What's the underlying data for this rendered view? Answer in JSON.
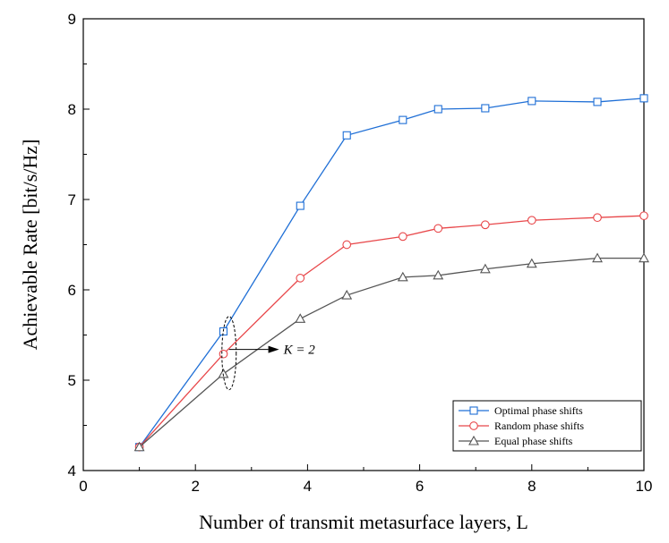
{
  "chart_data": {
    "type": "line",
    "title": "",
    "xlabel": "Number of transmit metasurface layers, L",
    "ylabel": "Achievable Rate [bit/s/Hz]",
    "xlim": [
      0,
      10
    ],
    "ylim": [
      4,
      9
    ],
    "xticks": [
      "0",
      "2",
      "4",
      "6",
      "8",
      "10"
    ],
    "yticks": [
      "4",
      "5",
      "6",
      "7",
      "8",
      "9"
    ],
    "grid": false,
    "legend_position": "bottom-right",
    "series": [
      {
        "name": "Optimal phase shifts",
        "color": "#1f6fd6",
        "marker": "square",
        "x": [
          1,
          2.5,
          3.87,
          4.7,
          5.7,
          6.33,
          7.17,
          8.0,
          9.17,
          10.0
        ],
        "y": [
          4.26,
          5.54,
          6.93,
          7.71,
          7.88,
          8.0,
          8.01,
          8.09,
          8.08,
          8.12
        ]
      },
      {
        "name": "Random phase shifts",
        "color": "#e8474a",
        "marker": "circle",
        "x": [
          1,
          2.5,
          3.87,
          4.7,
          5.7,
          6.33,
          7.17,
          8.0,
          9.17,
          10.0
        ],
        "y": [
          4.26,
          5.29,
          6.13,
          6.5,
          6.59,
          6.68,
          6.72,
          6.77,
          6.8,
          6.82
        ]
      },
      {
        "name": "Equal phase shifts",
        "color": "#555555",
        "marker": "triangle",
        "x": [
          1,
          2.5,
          3.87,
          4.7,
          5.7,
          6.33,
          7.17,
          8.0,
          9.17,
          10.0
        ],
        "y": [
          4.26,
          5.07,
          5.68,
          5.94,
          6.14,
          6.16,
          6.23,
          6.29,
          6.35,
          6.35
        ]
      }
    ],
    "annotations": [
      {
        "text": "K = 2",
        "x": 2.6,
        "y": 5.34
      }
    ]
  }
}
